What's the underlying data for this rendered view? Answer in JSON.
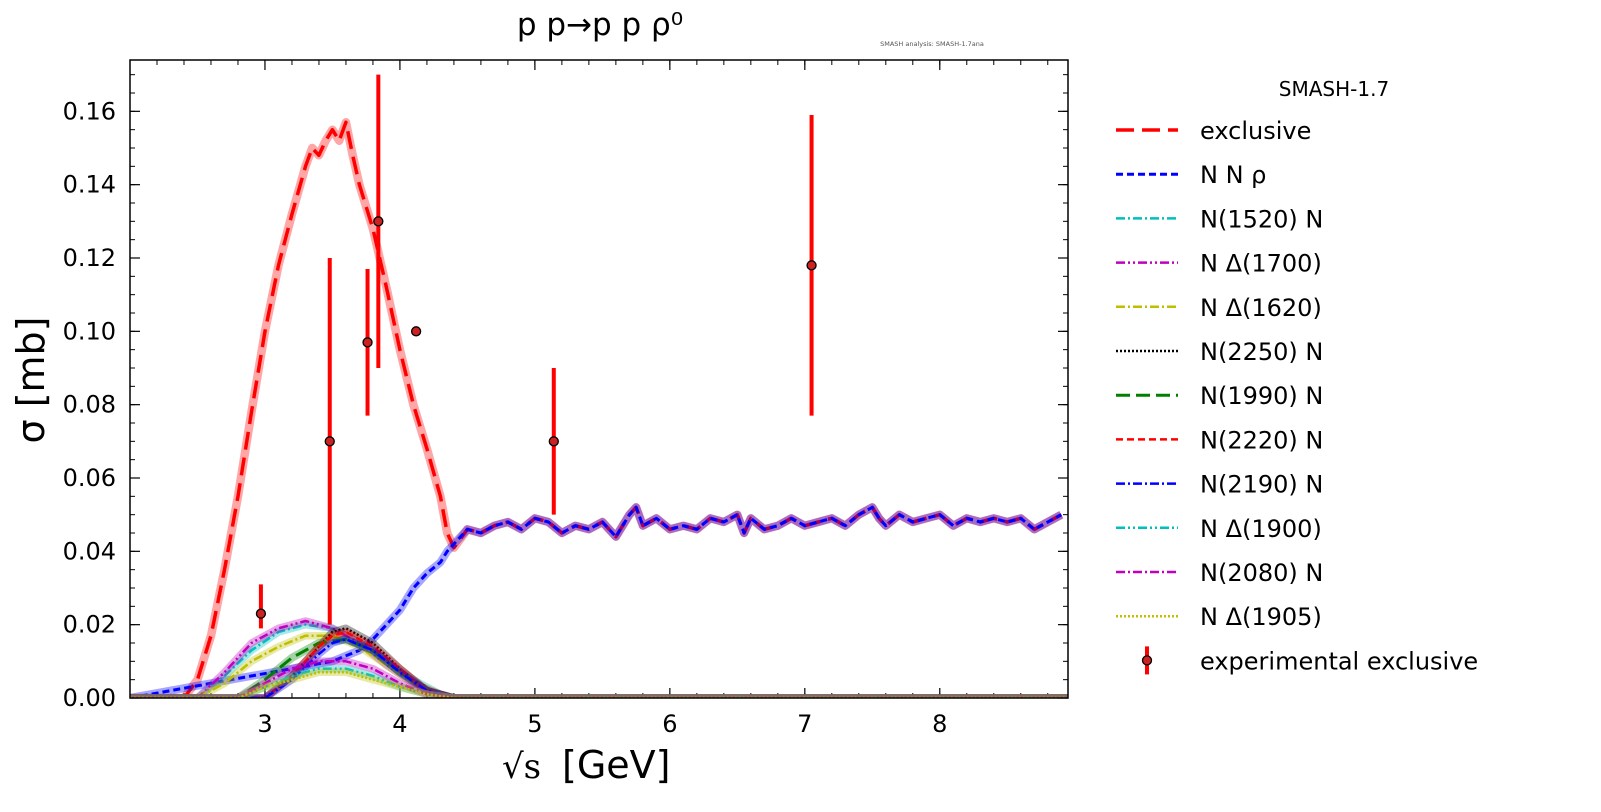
{
  "chart_data": {
    "type": "line",
    "title": "p p→p p ρ⁰",
    "watermark": "SMASH analysis: SMASH-1.7ana",
    "xlabel_prefix": "√s",
    "xlabel": "[GeV]",
    "ylabel": "σ [mb]",
    "xlim": [
      2.0,
      8.95
    ],
    "ylim": [
      0.0,
      0.174
    ],
    "xticks": [
      3,
      4,
      5,
      6,
      7,
      8
    ],
    "xtick_labels": [
      "3",
      "4",
      "5",
      "6",
      "7",
      "8"
    ],
    "yticks": [
      0.0,
      0.02,
      0.04,
      0.06,
      0.08,
      0.1,
      0.12,
      0.14,
      0.16
    ],
    "ytick_labels": [
      "0.00",
      "0.02",
      "0.04",
      "0.06",
      "0.08",
      "0.10",
      "0.12",
      "0.14",
      "0.16"
    ],
    "legend_title": "SMASH-1.7",
    "legend_position": "outside-right",
    "series": [
      {
        "name": "exclusive",
        "color": "#ff0000",
        "dash": "18,8",
        "width": 3.5,
        "x": [
          2.4,
          2.5,
          2.6,
          2.7,
          2.8,
          2.9,
          3.0,
          3.1,
          3.2,
          3.3,
          3.35,
          3.4,
          3.45,
          3.5,
          3.55,
          3.6,
          3.65,
          3.7,
          3.8,
          3.9,
          4.0,
          4.1,
          4.2,
          4.3,
          4.35,
          4.4,
          4.5,
          4.6,
          4.7,
          4.8,
          4.9,
          5.0,
          5.1,
          5.2,
          5.3,
          5.4,
          5.5,
          5.6,
          5.7,
          5.75,
          5.8,
          5.9,
          6.0,
          6.1,
          6.2,
          6.3,
          6.4,
          6.5,
          6.55,
          6.6,
          6.7,
          6.8,
          6.9,
          7.0,
          7.1,
          7.2,
          7.3,
          7.4,
          7.5,
          7.55,
          7.6,
          7.7,
          7.8,
          7.9,
          8.0,
          8.1,
          8.2,
          8.3,
          8.4,
          8.5,
          8.6,
          8.7,
          8.8,
          8.9
        ],
        "y": [
          0.0,
          0.005,
          0.017,
          0.035,
          0.055,
          0.078,
          0.1,
          0.118,
          0.132,
          0.145,
          0.15,
          0.148,
          0.152,
          0.155,
          0.152,
          0.157,
          0.148,
          0.14,
          0.128,
          0.112,
          0.095,
          0.08,
          0.068,
          0.055,
          0.045,
          0.041,
          0.046,
          0.045,
          0.047,
          0.048,
          0.046,
          0.049,
          0.048,
          0.045,
          0.047,
          0.046,
          0.048,
          0.044,
          0.05,
          0.052,
          0.047,
          0.049,
          0.046,
          0.047,
          0.046,
          0.049,
          0.048,
          0.05,
          0.045,
          0.049,
          0.046,
          0.047,
          0.049,
          0.047,
          0.048,
          0.049,
          0.047,
          0.05,
          0.052,
          0.049,
          0.047,
          0.05,
          0.048,
          0.049,
          0.05,
          0.047,
          0.049,
          0.048,
          0.049,
          0.048,
          0.049,
          0.046,
          0.048,
          0.05
        ]
      },
      {
        "name": "N N ρ",
        "color": "#0000ff",
        "dash": "7,4",
        "width": 3,
        "x": [
          3.5,
          3.7,
          3.8,
          3.9,
          4.0,
          4.1,
          4.2,
          4.3,
          4.35,
          4.4,
          4.5,
          4.6,
          4.7,
          4.8,
          4.9,
          5.0,
          5.1,
          5.2,
          5.3,
          5.4,
          5.5,
          5.6,
          5.7,
          5.75,
          5.8,
          5.9,
          6.0,
          6.1,
          6.2,
          6.3,
          6.4,
          6.5,
          6.55,
          6.6,
          6.7,
          6.8,
          6.9,
          7.0,
          7.1,
          7.2,
          7.3,
          7.4,
          7.5,
          7.55,
          7.6,
          7.7,
          7.8,
          7.9,
          8.0,
          8.1,
          8.2,
          8.3,
          8.4,
          8.5,
          8.6,
          8.7,
          8.8,
          8.9
        ],
        "y": [
          0.01,
          0.013,
          0.016,
          0.02,
          0.024,
          0.03,
          0.034,
          0.037,
          0.04,
          0.042,
          0.046,
          0.045,
          0.047,
          0.048,
          0.046,
          0.049,
          0.048,
          0.045,
          0.047,
          0.046,
          0.048,
          0.044,
          0.05,
          0.052,
          0.047,
          0.049,
          0.046,
          0.047,
          0.046,
          0.049,
          0.048,
          0.05,
          0.045,
          0.049,
          0.046,
          0.047,
          0.049,
          0.047,
          0.048,
          0.049,
          0.047,
          0.05,
          0.052,
          0.049,
          0.047,
          0.05,
          0.048,
          0.049,
          0.05,
          0.047,
          0.049,
          0.048,
          0.049,
          0.048,
          0.049,
          0.046,
          0.048,
          0.05
        ]
      },
      {
        "name": "N(1520) N",
        "color": "#00bfbf",
        "dash": "9,3,2,3",
        "width": 2.5,
        "x": [
          2.5,
          2.7,
          2.9,
          3.1,
          3.3,
          3.5,
          3.7,
          3.9,
          4.1,
          4.3,
          4.4
        ],
        "y": [
          0.0,
          0.006,
          0.013,
          0.018,
          0.02,
          0.019,
          0.015,
          0.01,
          0.005,
          0.001,
          0.0
        ]
      },
      {
        "name": "N Δ(1700)",
        "color": "#bf00bf",
        "dash": "9,3,2,3,2,3",
        "width": 2.5,
        "x": [
          2.5,
          2.7,
          2.9,
          3.1,
          3.3,
          3.5,
          3.7,
          3.9,
          4.1,
          4.3,
          4.4
        ],
        "y": [
          0.0,
          0.007,
          0.015,
          0.019,
          0.021,
          0.019,
          0.015,
          0.009,
          0.004,
          0.001,
          0.0
        ]
      },
      {
        "name": "N Δ(1620)",
        "color": "#bfbf00",
        "dash": "9,3,2,3",
        "width": 2.5,
        "x": [
          2.5,
          2.7,
          2.9,
          3.1,
          3.3,
          3.5,
          3.7,
          3.9,
          4.1,
          4.3,
          4.4
        ],
        "y": [
          0.0,
          0.004,
          0.01,
          0.014,
          0.017,
          0.017,
          0.014,
          0.009,
          0.004,
          0.001,
          0.0
        ]
      },
      {
        "name": "N(2250) N",
        "color": "#000000",
        "dash": "2,2",
        "width": 2.5,
        "x": [
          3.0,
          3.2,
          3.4,
          3.5,
          3.6,
          3.8,
          4.0,
          4.2,
          4.4
        ],
        "y": [
          0.0,
          0.006,
          0.014,
          0.018,
          0.019,
          0.015,
          0.008,
          0.002,
          0.0
        ]
      },
      {
        "name": "N(1990) N",
        "color": "#008000",
        "dash": "14,6",
        "width": 3,
        "x": [
          2.8,
          3.0,
          3.2,
          3.4,
          3.6,
          3.8,
          4.0,
          4.2,
          4.4
        ],
        "y": [
          0.0,
          0.005,
          0.011,
          0.015,
          0.016,
          0.013,
          0.007,
          0.002,
          0.0
        ]
      },
      {
        "name": "N(2220) N",
        "color": "#ff0000",
        "dash": "7,4",
        "width": 2.5,
        "x": [
          3.0,
          3.2,
          3.4,
          3.5,
          3.6,
          3.8,
          4.0,
          4.2,
          4.4
        ],
        "y": [
          0.0,
          0.006,
          0.014,
          0.017,
          0.018,
          0.014,
          0.008,
          0.002,
          0.0
        ]
      },
      {
        "name": "N(2190) N",
        "color": "#0000ff",
        "dash": "9,3,2,3",
        "width": 2.5,
        "x": [
          3.0,
          3.2,
          3.4,
          3.5,
          3.6,
          3.8,
          4.0,
          4.2,
          4.4
        ],
        "y": [
          0.0,
          0.005,
          0.012,
          0.015,
          0.016,
          0.013,
          0.007,
          0.002,
          0.0
        ]
      },
      {
        "name": "N Δ(1900)",
        "color": "#00bfbf",
        "dash": "9,3,2,3,2,3",
        "width": 2.5,
        "x": [
          2.8,
          3.0,
          3.2,
          3.4,
          3.6,
          3.8,
          4.0,
          4.2,
          4.4
        ],
        "y": [
          0.0,
          0.003,
          0.006,
          0.008,
          0.008,
          0.006,
          0.003,
          0.001,
          0.0
        ]
      },
      {
        "name": "N(2080) N",
        "color": "#bf00bf",
        "dash": "9,3,2,3",
        "width": 2.5,
        "x": [
          2.8,
          3.0,
          3.2,
          3.4,
          3.6,
          3.8,
          4.0,
          4.2,
          4.4
        ],
        "y": [
          0.0,
          0.004,
          0.008,
          0.01,
          0.01,
          0.008,
          0.004,
          0.001,
          0.0
        ]
      },
      {
        "name": "N Δ(1905)",
        "color": "#bfbf00",
        "dash": "2,2",
        "width": 2.5,
        "x": [
          2.8,
          3.0,
          3.2,
          3.4,
          3.6,
          3.8,
          4.0,
          4.2,
          4.4
        ],
        "y": [
          0.0,
          0.003,
          0.005,
          0.007,
          0.007,
          0.005,
          0.003,
          0.001,
          0.0
        ]
      }
    ],
    "experimental": {
      "name": "experimental exclusive",
      "color": "#ff0000",
      "marker_fill": "#cc2222",
      "points": [
        {
          "x": 2.97,
          "y": 0.023,
          "ylo": 0.019,
          "yhi": 0.031
        },
        {
          "x": 3.48,
          "y": 0.07,
          "ylo": 0.02,
          "yhi": 0.12
        },
        {
          "x": 3.76,
          "y": 0.097,
          "ylo": 0.077,
          "yhi": 0.117
        },
        {
          "x": 3.84,
          "y": 0.13,
          "ylo": 0.09,
          "yhi": 0.17
        },
        {
          "x": 4.12,
          "y": 0.1,
          "ylo": 0.1,
          "yhi": 0.1
        },
        {
          "x": 5.14,
          "y": 0.07,
          "ylo": 0.05,
          "yhi": 0.09
        },
        {
          "x": 7.05,
          "y": 0.118,
          "ylo": 0.077,
          "yhi": 0.159
        }
      ]
    }
  }
}
